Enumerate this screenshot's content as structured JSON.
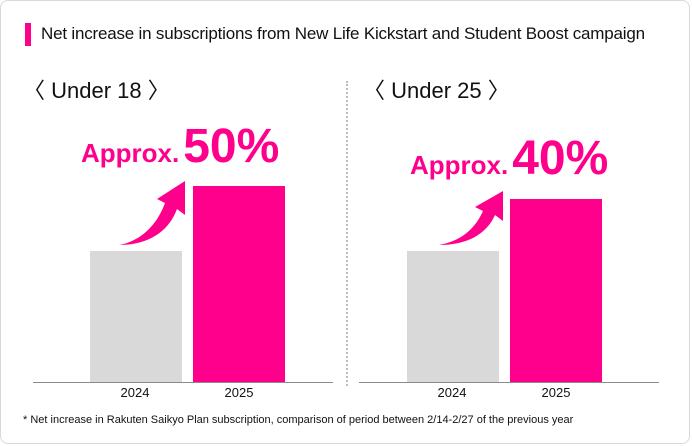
{
  "title": "Net increase in subscriptions from New Life Kickstart and Student Boost campaign",
  "footnote": "* Net increase in Rakuten Saikyo Plan subscription, comparison of period between 2/14-2/27 of the previous year",
  "colors": {
    "accent": "#ff008c",
    "previous_bar": "#d9d9d9",
    "baseline": "#8a8a8a"
  },
  "chart_data": [
    {
      "type": "bar",
      "title": "〈 Under 18 〉",
      "categories": [
        "2024",
        "2025"
      ],
      "values": [
        1.0,
        1.5
      ],
      "annotation": {
        "prefix": "Approx.",
        "value": "50%"
      },
      "ylim": [
        0,
        1.5
      ]
    },
    {
      "type": "bar",
      "title": "〈 Under 25 〉",
      "categories": [
        "2024",
        "2025"
      ],
      "values": [
        1.0,
        1.4
      ],
      "annotation": {
        "prefix": "Approx.",
        "value": "40%"
      },
      "ylim": [
        0,
        1.5
      ]
    }
  ]
}
